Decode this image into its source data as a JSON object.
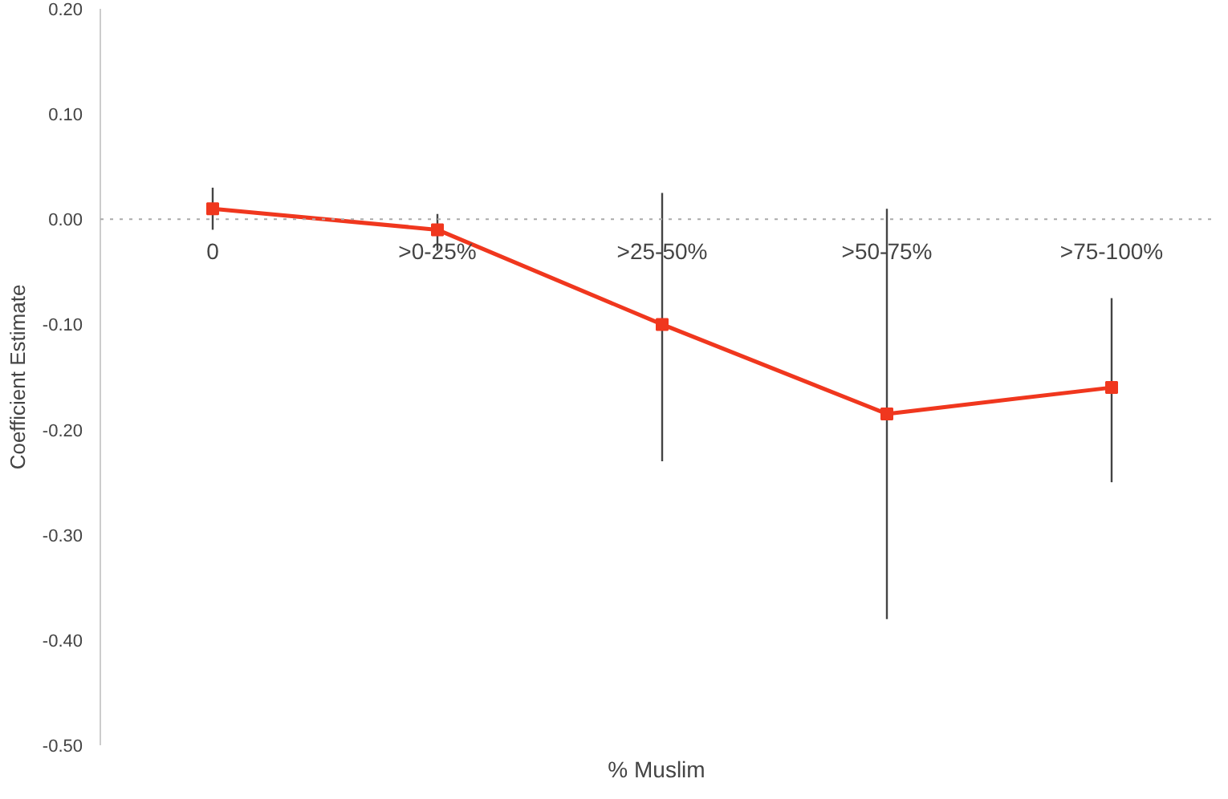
{
  "chart_data": {
    "type": "line",
    "xlabel": "% Muslim",
    "ylabel": "Coefficient Estimate",
    "categories": [
      "0",
      ">0-25%",
      ">25-50%",
      ">50-75%",
      ">75-100%"
    ],
    "series": [
      {
        "color": "#f0371e",
        "values": [
          0.01,
          -0.01,
          -0.1,
          -0.185,
          -0.16
        ],
        "errors": [
          [
            -0.01,
            0.03
          ],
          [
            -0.03,
            0.005
          ],
          [
            -0.23,
            0.025
          ],
          [
            -0.38,
            0.01
          ],
          [
            -0.25,
            -0.075
          ]
        ]
      }
    ],
    "ylim": [
      -0.5,
      0.2
    ],
    "yticks": [
      {
        "value": -0.5,
        "label": "-0.50"
      },
      {
        "value": -0.4,
        "label": "-0.40"
      },
      {
        "value": -0.3,
        "label": "-0.30"
      },
      {
        "value": -0.2,
        "label": "-0.20"
      },
      {
        "value": -0.1,
        "label": "-0.10"
      },
      {
        "value": 0,
        "label": "0.00"
      },
      {
        "value": 0.1,
        "label": "0.10"
      },
      {
        "value": 0.2,
        "label": "0.20"
      }
    ],
    "ref_lines": [
      {
        "axis": "y",
        "value": 0,
        "color": "#aaaaaa",
        "line_style": "dotted"
      }
    ],
    "grid": false,
    "marker": "square",
    "line_style": "solid"
  }
}
